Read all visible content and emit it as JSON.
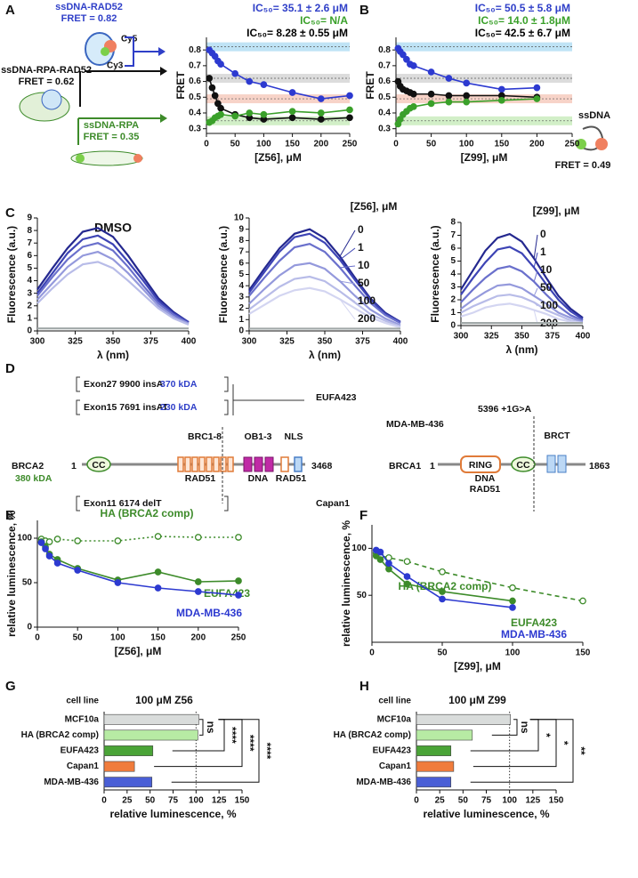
{
  "panel_labels": [
    "A",
    "B",
    "C",
    "D",
    "E",
    "F",
    "G",
    "H"
  ],
  "schematic_a": {
    "rad52": "ssDNA-RAD52",
    "rad52_fret": "FRET = 0.82",
    "cy5": "Cy5",
    "cy3": "Cy3",
    "rpa_rad52": "ssDNA-RPA-RAD52",
    "rpa_rad52_fret": "FRET = 0.62",
    "rpa": "ssDNA-RPA",
    "rpa_fret": "FRET = 0.35"
  },
  "schematic_b": {
    "ssdna": "ssDNA",
    "fret": "FRET = 0.49"
  },
  "diagram_d": {
    "exon27": "Exon27 9900 insA",
    "kda370": "370 kDA",
    "exon15": "Exon15 7691 insAT",
    "kda230": "230 kDA",
    "eufa": "EUFA423",
    "brc": "BRC1-8",
    "ob": "OB1-3",
    "nls": "NLS",
    "brca2": "BRCA2",
    "brca2_start": "1",
    "brca2_cc": "CC",
    "brca2_end": "3468",
    "kda380": "380 kDA",
    "rad51_a": "RAD51",
    "dna_a": "DNA",
    "rad51_b": "RAD51",
    "exon11": "Exon11 6174 delT",
    "capan": "Capan1",
    "mda": "MDA-MB-436",
    "mutation": "5396 +1G>A",
    "brca1": "BRCA1",
    "brca1_start": "1",
    "ring": "RING",
    "brca1_cc": "CC",
    "brct": "BRCT",
    "brca1_end": "1863",
    "dna_b": "DNA",
    "rad51_c": "RAD51"
  },
  "chart_data": [
    {
      "type": "scatter",
      "xlabel": "[Z56], μM",
      "ylabel": "FRET",
      "xlim": [
        0,
        250
      ],
      "xticks": [
        0,
        50,
        100,
        150,
        200,
        250
      ],
      "ylim": [
        0.27,
        0.88
      ],
      "yticks": [
        0.3,
        0.4,
        0.5,
        0.6,
        0.7,
        0.8
      ],
      "reference_lines": [
        {
          "value": 0.82,
          "color": "#bfe3f5"
        },
        {
          "value": 0.62,
          "color": "#dcdcdc"
        },
        {
          "value": 0.49,
          "color": "#f7d3c8"
        },
        {
          "value": 0.35,
          "color": "#d2efc8"
        }
      ],
      "annotations": [
        {
          "text": "IC₅₀= 35.1 ± 2.6 μM",
          "color": "#2f3fc8"
        },
        {
          "text": "IC₅₀= N/A",
          "color": "#3aa02a"
        },
        {
          "text": "IC₅₀= 8.28 ± 0.55 μM",
          "color": "#000000"
        }
      ],
      "series": [
        {
          "color": "#2d3ad0",
          "x": [
            5,
            10,
            15,
            20,
            25,
            50,
            75,
            100,
            150,
            200,
            250
          ],
          "values": [
            0.8,
            0.78,
            0.76,
            0.73,
            0.71,
            0.65,
            0.6,
            0.58,
            0.53,
            0.49,
            0.51
          ]
        },
        {
          "color": "#111111",
          "x": [
            5,
            10,
            15,
            20,
            25,
            50,
            75,
            100,
            150,
            200,
            250
          ],
          "values": [
            0.62,
            0.56,
            0.51,
            0.46,
            0.43,
            0.39,
            0.37,
            0.36,
            0.37,
            0.36,
            0.37
          ]
        },
        {
          "color": "#3aa02a",
          "x": [
            5,
            10,
            15,
            20,
            25,
            50,
            75,
            100,
            150,
            200,
            250
          ],
          "values": [
            0.34,
            0.35,
            0.37,
            0.38,
            0.39,
            0.38,
            0.4,
            0.39,
            0.41,
            0.4,
            0.42
          ]
        }
      ]
    },
    {
      "type": "scatter",
      "xlabel": "[Z99], μM",
      "ylabel": "FRET",
      "xlim": [
        0,
        250
      ],
      "xticks": [
        0,
        50,
        100,
        150,
        200,
        250
      ],
      "ylim": [
        0.27,
        0.88
      ],
      "yticks": [
        0.3,
        0.4,
        0.5,
        0.6,
        0.7,
        0.8
      ],
      "reference_lines": [
        {
          "value": 0.82,
          "color": "#bfe3f5"
        },
        {
          "value": 0.62,
          "color": "#dcdcdc"
        },
        {
          "value": 0.49,
          "color": "#f7d3c8"
        },
        {
          "value": 0.35,
          "color": "#d2efc8"
        }
      ],
      "annotations": [
        {
          "text": "IC₅₀= 50.5 ± 5.8 μM",
          "color": "#2f3fc8"
        },
        {
          "text": "IC₅₀= 14.0 ± 1.8μM",
          "color": "#3aa02a"
        },
        {
          "text": "IC₅₀= 42.5 ± 6.7 μM",
          "color": "#000000"
        }
      ],
      "series": [
        {
          "color": "#2d3ad0",
          "x": [
            3,
            6,
            10,
            15,
            20,
            25,
            50,
            75,
            100,
            150,
            200
          ],
          "values": [
            0.81,
            0.79,
            0.77,
            0.74,
            0.71,
            0.7,
            0.66,
            0.62,
            0.59,
            0.55,
            0.56
          ]
        },
        {
          "color": "#111111",
          "x": [
            3,
            6,
            10,
            15,
            20,
            25,
            50,
            75,
            100,
            150,
            200
          ],
          "values": [
            0.6,
            0.57,
            0.55,
            0.54,
            0.53,
            0.52,
            0.52,
            0.51,
            0.51,
            0.51,
            0.5
          ]
        },
        {
          "color": "#3aa02a",
          "x": [
            3,
            6,
            10,
            15,
            20,
            25,
            50,
            75,
            100,
            150,
            200
          ],
          "values": [
            0.33,
            0.36,
            0.39,
            0.41,
            0.43,
            0.44,
            0.46,
            0.47,
            0.47,
            0.48,
            0.49
          ]
        }
      ]
    },
    {
      "type": "line",
      "title": "DMSO",
      "xlabel": "λ (nm)",
      "ylabel": "Fluorescence (a.u.)",
      "xlim": [
        300,
        400
      ],
      "xticks": [
        300,
        325,
        350,
        375,
        400
      ],
      "ylim": [
        0,
        9
      ],
      "yticks": [
        0,
        1,
        2,
        3,
        4,
        5,
        6,
        7,
        8,
        9
      ],
      "x": [
        300,
        310,
        320,
        330,
        340,
        350,
        360,
        370,
        380,
        390,
        400
      ],
      "series": [
        {
          "color": "#24288f",
          "values": [
            3.3,
            5.0,
            6.6,
            7.9,
            8.2,
            7.5,
            6.0,
            4.3,
            2.6,
            1.5,
            0.7
          ]
        },
        {
          "color": "#3d44b5",
          "values": [
            3.0,
            4.6,
            6.2,
            7.3,
            7.6,
            6.9,
            5.5,
            4.0,
            2.4,
            1.4,
            0.7
          ]
        },
        {
          "color": "#6a70cc",
          "values": [
            2.8,
            4.3,
            5.7,
            6.7,
            7.0,
            6.4,
            5.1,
            3.6,
            2.2,
            1.3,
            0.6
          ]
        },
        {
          "color": "#9499dc",
          "values": [
            2.5,
            3.8,
            5.1,
            6.0,
            6.3,
            5.7,
            4.6,
            3.3,
            2.0,
            1.1,
            0.6
          ]
        },
        {
          "color": "#b8bce8",
          "values": [
            2.2,
            3.4,
            4.5,
            5.3,
            5.5,
            5.0,
            4.0,
            2.9,
            1.8,
            1.0,
            0.5
          ]
        },
        {
          "color": "#a0a8a8",
          "values": [
            0.2,
            0.2,
            0.2,
            0.2,
            0.2,
            0.2,
            0.2,
            0.2,
            0.2,
            0.2,
            0.2
          ]
        }
      ]
    },
    {
      "type": "line",
      "legend_title": "[Z56], μM",
      "xlabel": "λ (nm)",
      "ylabel": "Fluorescence (a.u.)",
      "xlim": [
        300,
        400
      ],
      "xticks": [
        300,
        325,
        350,
        375,
        400
      ],
      "ylim": [
        0,
        10
      ],
      "yticks": [
        0,
        1,
        2,
        3,
        4,
        5,
        6,
        7,
        8,
        9,
        10
      ],
      "x": [
        300,
        310,
        320,
        330,
        340,
        350,
        360,
        370,
        380,
        390,
        400
      ],
      "series": [
        {
          "name": "0",
          "color": "#24288f",
          "values": [
            3.6,
            5.5,
            7.3,
            8.6,
            9.0,
            8.2,
            6.6,
            4.7,
            2.9,
            1.6,
            0.8
          ]
        },
        {
          "name": "1",
          "color": "#3d44b5",
          "values": [
            3.4,
            5.2,
            7.0,
            8.3,
            8.6,
            7.8,
            6.3,
            4.5,
            2.8,
            1.5,
            0.8
          ]
        },
        {
          "name": "10",
          "color": "#6a70cc",
          "values": [
            3.1,
            4.7,
            6.2,
            7.4,
            7.7,
            7.0,
            5.6,
            4.0,
            2.5,
            1.4,
            0.7
          ]
        },
        {
          "name": "50",
          "color": "#9499dc",
          "values": [
            2.4,
            3.7,
            4.9,
            5.8,
            6.0,
            5.5,
            4.4,
            3.1,
            1.9,
            1.1,
            0.5
          ]
        },
        {
          "name": "100",
          "color": "#b8bce8",
          "values": [
            1.9,
            2.9,
            3.9,
            4.6,
            4.8,
            4.4,
            3.5,
            2.5,
            1.5,
            0.9,
            0.4
          ]
        },
        {
          "name": "200",
          "color": "#d3d5f1",
          "values": [
            1.5,
            2.3,
            3.1,
            3.6,
            3.8,
            3.5,
            2.8,
            2.0,
            1.2,
            0.7,
            0.3
          ]
        },
        {
          "color": "#a0a8a8",
          "values": [
            0.2,
            0.2,
            0.2,
            0.2,
            0.2,
            0.2,
            0.2,
            0.2,
            0.2,
            0.2,
            0.2
          ]
        }
      ]
    },
    {
      "type": "line",
      "legend_title": "[Z99], μM",
      "xlabel": "λ (nm)",
      "ylabel": "Fluorescence (a.u.)",
      "xlim": [
        300,
        400
      ],
      "xticks": [
        300,
        325,
        350,
        375,
        400
      ],
      "ylim": [
        0,
        8
      ],
      "yticks": [
        0,
        1,
        2,
        3,
        4,
        5,
        6,
        7,
        8
      ],
      "x": [
        300,
        310,
        320,
        330,
        340,
        350,
        360,
        370,
        380,
        390,
        400
      ],
      "series": [
        {
          "name": "0",
          "color": "#24288f",
          "values": [
            2.8,
            4.3,
            5.8,
            6.8,
            7.1,
            6.5,
            5.2,
            3.7,
            2.3,
            1.3,
            0.6
          ]
        },
        {
          "name": "1",
          "color": "#3d44b5",
          "values": [
            2.4,
            3.7,
            4.9,
            5.9,
            6.1,
            5.6,
            4.5,
            3.2,
            2.0,
            1.1,
            0.5
          ]
        },
        {
          "name": "10",
          "color": "#6a70cc",
          "values": [
            1.8,
            2.8,
            3.7,
            4.4,
            4.6,
            4.2,
            3.4,
            2.4,
            1.5,
            0.8,
            0.4
          ]
        },
        {
          "name": "50",
          "color": "#9499dc",
          "values": [
            1.3,
            2.0,
            2.6,
            3.1,
            3.2,
            2.9,
            2.3,
            1.7,
            1.0,
            0.6,
            0.3
          ]
        },
        {
          "name": "100",
          "color": "#b8bce8",
          "values": [
            1.0,
            1.5,
            1.9,
            2.3,
            2.4,
            2.2,
            1.8,
            1.2,
            0.8,
            0.4,
            0.2
          ]
        },
        {
          "name": "200",
          "color": "#d3d5f1",
          "values": [
            0.7,
            1.0,
            1.4,
            1.6,
            1.7,
            1.5,
            1.2,
            0.9,
            0.5,
            0.3,
            0.2
          ]
        },
        {
          "color": "#a0a8a8",
          "values": [
            0.2,
            0.2,
            0.2,
            0.2,
            0.2,
            0.2,
            0.2,
            0.2,
            0.2,
            0.2,
            0.2
          ]
        }
      ]
    },
    {
      "type": "scatter",
      "xlabel": "[Z56],  μM",
      "ylabel": "relative luminescence, %",
      "xlim": [
        0,
        250
      ],
      "xticks": [
        0,
        50,
        100,
        150,
        200,
        250
      ],
      "ylim": [
        0,
        120
      ],
      "yticks": [
        0,
        50,
        100
      ],
      "series": [
        {
          "name": "HA (BRCA2 comp)",
          "color": "#3d8b2a",
          "open": true,
          "dash": "2,3",
          "x": [
            5,
            10,
            15,
            25,
            50,
            100,
            150,
            200,
            250
          ],
          "values": [
            99,
            97,
            96,
            99,
            97,
            97,
            102,
            101,
            101
          ]
        },
        {
          "name": "EUFA423",
          "color": "#3d8b2a",
          "x": [
            5,
            10,
            15,
            25,
            50,
            100,
            150,
            200,
            250
          ],
          "values": [
            96,
            90,
            82,
            76,
            66,
            53,
            62,
            51,
            52
          ]
        },
        {
          "name": "MDA-MB-436",
          "color": "#2d3ad0",
          "x": [
            5,
            10,
            15,
            25,
            50,
            100,
            150,
            200,
            250
          ],
          "values": [
            95,
            88,
            80,
            72,
            64,
            50,
            44,
            40,
            36
          ]
        }
      ]
    },
    {
      "type": "scatter",
      "xlabel": "[Z99],  μM",
      "ylabel": "relative luminescence, %",
      "xlim": [
        0,
        150
      ],
      "xticks": [
        0,
        50,
        100,
        150
      ],
      "ylim": [
        0,
        125
      ],
      "yticks": [
        50,
        100
      ],
      "series": [
        {
          "name": "HA (BRCA2 comp)",
          "color": "#3d8b2a",
          "open": true,
          "dash": "5,4",
          "x": [
            3,
            6,
            12,
            25,
            50,
            100,
            150
          ],
          "values": [
            95,
            92,
            90,
            86,
            75,
            58,
            44
          ]
        },
        {
          "name": "EUFA423",
          "color": "#3d8b2a",
          "x": [
            3,
            6,
            12,
            25,
            50,
            100
          ],
          "values": [
            92,
            88,
            78,
            62,
            54,
            44
          ]
        },
        {
          "name": "MDA-MB-436",
          "color": "#2d3ad0",
          "x": [
            3,
            6,
            12,
            25,
            50,
            100
          ],
          "values": [
            98,
            96,
            84,
            70,
            46,
            37
          ]
        }
      ]
    },
    {
      "type": "bar",
      "orientation": "horizontal",
      "title": "100 μM Z56",
      "category_title": "cell line",
      "xlabel": "relative luminescence, %",
      "xlim": [
        0,
        150
      ],
      "xticks": [
        0,
        25,
        50,
        75,
        100,
        125,
        150
      ],
      "reference_x": 100,
      "categories": [
        "MCF10a",
        "HA (BRCA2 comp)",
        "EUFA423",
        "Capan1",
        "MDA-MB-436"
      ],
      "values": [
        103,
        102,
        53,
        33,
        52
      ],
      "colors": [
        "#d9dcdb",
        "#b7eba4",
        "#4aa437",
        "#f07c3c",
        "#4a5fd6"
      ],
      "annotations": [
        "ns",
        "****",
        "****",
        "****"
      ]
    },
    {
      "type": "bar",
      "orientation": "horizontal",
      "title": "100 μM Z99",
      "category_title": "cell line",
      "xlabel": "relative luminescence, %",
      "xlim": [
        0,
        150
      ],
      "xticks": [
        0,
        25,
        50,
        75,
        100,
        125,
        150
      ],
      "reference_x": 100,
      "categories": [
        "MCF10a",
        "HA (BRCA2 comp)",
        "EUFA423",
        "Capan1",
        "MDA-MB-436"
      ],
      "values": [
        101,
        60,
        37,
        40,
        37
      ],
      "colors": [
        "#d9dcdb",
        "#b7eba4",
        "#4aa437",
        "#f07c3c",
        "#4a5fd6"
      ],
      "annotations": [
        "ns",
        "*",
        "*",
        "**"
      ]
    }
  ]
}
